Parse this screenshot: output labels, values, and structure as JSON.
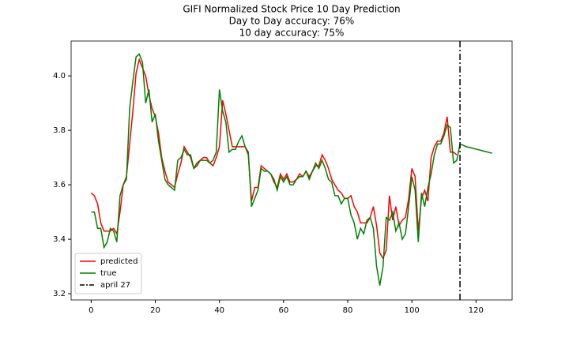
{
  "chart_data": {
    "type": "line",
    "title": [
      "GIFI Normalized Stock Price 10 Day Prediction",
      "Day to Day accuracy: 76%",
      "10 day accuracy: 75%"
    ],
    "x": [
      0,
      1,
      2,
      3,
      4,
      5,
      6,
      7,
      8,
      9,
      10,
      11,
      12,
      13,
      14,
      15,
      16,
      17,
      18,
      19,
      20,
      21,
      22,
      23,
      24,
      25,
      26,
      27,
      28,
      29,
      30,
      31,
      32,
      33,
      34,
      35,
      36,
      37,
      38,
      39,
      40,
      41,
      42,
      43,
      44,
      45,
      46,
      47,
      48,
      49,
      50,
      51,
      52,
      53,
      54,
      55,
      56,
      57,
      58,
      59,
      60,
      61,
      62,
      63,
      64,
      65,
      66,
      67,
      68,
      69,
      70,
      71,
      72,
      73,
      74,
      75,
      76,
      77,
      78,
      79,
      80,
      81,
      82,
      83,
      84,
      85,
      86,
      87,
      88,
      89,
      90,
      91,
      92,
      93,
      94,
      95,
      96,
      97,
      98,
      99,
      100,
      101,
      102,
      103,
      104,
      105,
      106,
      107,
      108,
      109,
      110,
      111,
      112,
      113,
      114,
      115,
      116,
      117,
      118,
      119,
      120,
      121,
      122,
      123,
      124,
      125
    ],
    "series": [
      {
        "name": "predicted",
        "color": "#ff0000",
        "values": [
          3.57,
          3.56,
          3.53,
          3.46,
          3.43,
          3.43,
          3.43,
          3.44,
          3.42,
          3.5,
          3.6,
          3.63,
          3.75,
          3.87,
          4.01,
          4.06,
          4.03,
          4.0,
          3.93,
          3.88,
          3.85,
          3.79,
          3.7,
          3.65,
          3.61,
          3.6,
          3.59,
          3.64,
          3.68,
          3.74,
          3.72,
          3.7,
          3.66,
          3.68,
          3.69,
          3.7,
          3.7,
          3.68,
          3.67,
          3.7,
          3.74,
          3.91,
          3.86,
          3.8,
          3.74,
          3.74,
          3.74,
          3.74,
          3.74,
          3.71,
          3.54,
          3.59,
          3.59,
          3.67,
          3.66,
          3.65,
          3.64,
          3.61,
          3.59,
          3.64,
          3.62,
          3.64,
          3.61,
          3.61,
          3.62,
          3.64,
          3.63,
          3.65,
          3.63,
          3.65,
          3.67,
          3.67,
          3.71,
          3.69,
          3.66,
          3.62,
          3.6,
          3.58,
          3.57,
          3.55,
          3.55,
          3.56,
          3.52,
          3.5,
          3.46,
          3.46,
          3.46,
          3.48,
          3.52,
          3.45,
          3.35,
          3.33,
          3.36,
          3.56,
          3.47,
          3.52,
          3.45,
          3.47,
          3.48,
          3.55,
          3.66,
          3.63,
          3.43,
          3.55,
          3.58,
          3.54,
          3.7,
          3.74,
          3.76,
          3.76,
          3.79,
          3.85,
          3.72,
          3.72,
          3.71,
          null,
          null,
          null,
          null,
          null,
          null,
          null,
          null,
          null,
          null,
          null
        ]
      },
      {
        "name": "true",
        "color": "#008000",
        "values": [
          3.5,
          3.5,
          3.44,
          3.44,
          3.37,
          3.39,
          3.44,
          3.43,
          3.39,
          3.56,
          3.6,
          3.62,
          3.88,
          3.98,
          4.07,
          4.08,
          4.05,
          3.9,
          3.95,
          3.83,
          3.86,
          3.76,
          3.69,
          3.62,
          3.6,
          3.59,
          3.58,
          3.69,
          3.7,
          3.73,
          3.71,
          3.71,
          3.66,
          3.67,
          3.69,
          3.69,
          3.69,
          3.68,
          3.69,
          3.72,
          3.95,
          3.87,
          3.83,
          3.72,
          3.73,
          3.73,
          3.76,
          3.78,
          3.74,
          3.72,
          3.52,
          3.55,
          3.58,
          3.66,
          3.65,
          3.65,
          3.64,
          3.62,
          3.58,
          3.63,
          3.61,
          3.63,
          3.6,
          3.6,
          3.62,
          3.63,
          3.63,
          3.65,
          3.62,
          3.65,
          3.68,
          3.66,
          3.69,
          3.66,
          3.62,
          3.61,
          3.56,
          3.56,
          3.53,
          3.55,
          3.55,
          3.49,
          3.46,
          3.4,
          3.44,
          3.42,
          3.47,
          3.48,
          3.44,
          3.3,
          3.23,
          3.3,
          3.48,
          3.47,
          3.5,
          3.43,
          3.46,
          3.4,
          3.42,
          3.52,
          3.63,
          3.58,
          3.39,
          3.57,
          3.52,
          3.59,
          3.64,
          3.71,
          3.75,
          3.75,
          3.78,
          3.82,
          3.81,
          3.68,
          3.69,
          3.75,
          3.745,
          3.74,
          3.737,
          3.734,
          3.731,
          3.728,
          3.725,
          3.722,
          3.719,
          3.716
        ]
      }
    ],
    "vline": {
      "name": "april 27",
      "x": 115,
      "color": "#000000"
    },
    "xlim": [
      -6.25,
      131.25
    ],
    "xticks": [
      0,
      20,
      40,
      60,
      80,
      100,
      120
    ],
    "ylim": [
      3.177,
      4.128
    ],
    "yticks": [
      3.2,
      3.4,
      3.6,
      3.8,
      {
        "value": 4,
        "label": "4.0"
      }
    ],
    "legend": "lower left"
  }
}
